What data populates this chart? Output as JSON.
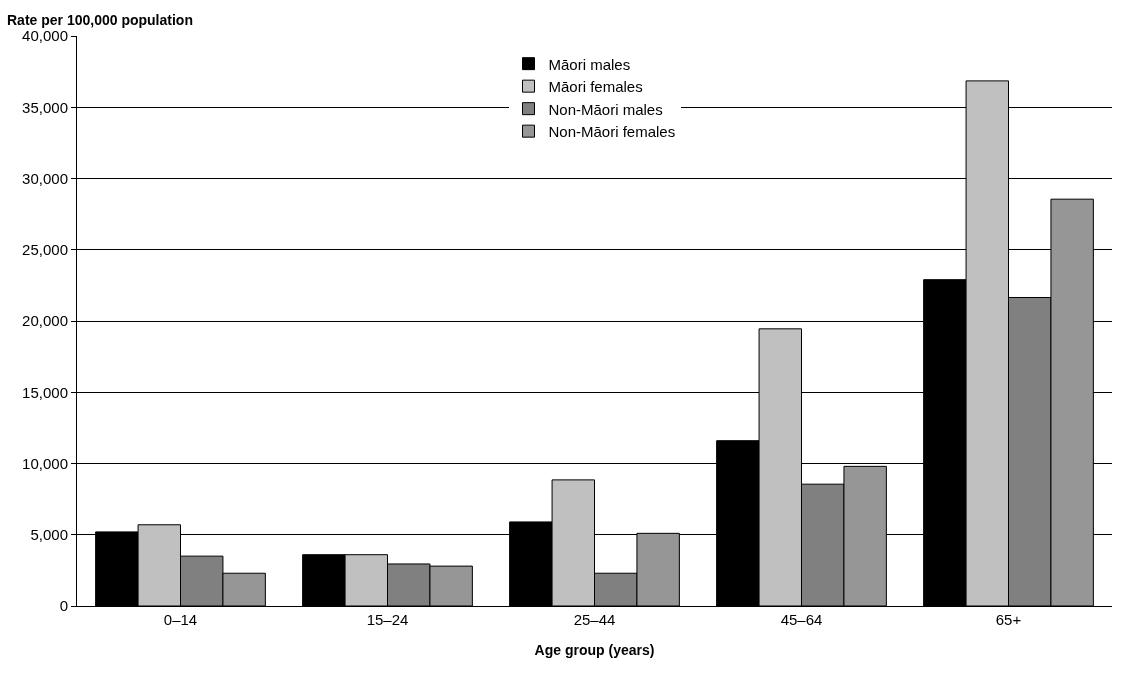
{
  "chart_data": {
    "type": "bar",
    "ylabel": "Rate per 100,000 population",
    "xlabel": "Age group (years)",
    "categories": [
      "0–14",
      "15–24",
      "25–44",
      "45–64",
      "65+"
    ],
    "series": [
      {
        "name": "Māori males",
        "color": "#000000",
        "values": [
          5200,
          3600,
          5900,
          11600,
          22900
        ]
      },
      {
        "name": "Māori females",
        "color": "#c0c0c0",
        "values": [
          5700,
          3600,
          8850,
          19450,
          36850
        ]
      },
      {
        "name": "Non-Māori males",
        "color": "#808080",
        "values": [
          3500,
          2950,
          2300,
          8550,
          21650
        ]
      },
      {
        "name": "Non-Māori females",
        "color": "#969696",
        "values": [
          2300,
          2800,
          5100,
          9800,
          28550
        ]
      }
    ],
    "ylim": [
      0,
      40000
    ],
    "yticks": [
      {
        "value": 0,
        "label": "0"
      },
      {
        "value": 5000,
        "label": "5,000"
      },
      {
        "value": 10000,
        "label": "10,000"
      },
      {
        "value": 15000,
        "label": "15,000"
      },
      {
        "value": 20000,
        "label": "20,000"
      },
      {
        "value": 25000,
        "label": "25,000"
      },
      {
        "value": 30000,
        "label": "30,000"
      },
      {
        "value": 35000,
        "label": "35,000"
      },
      {
        "value": 40000,
        "label": "40,000"
      }
    ],
    "grid": "y",
    "legend": "top"
  }
}
